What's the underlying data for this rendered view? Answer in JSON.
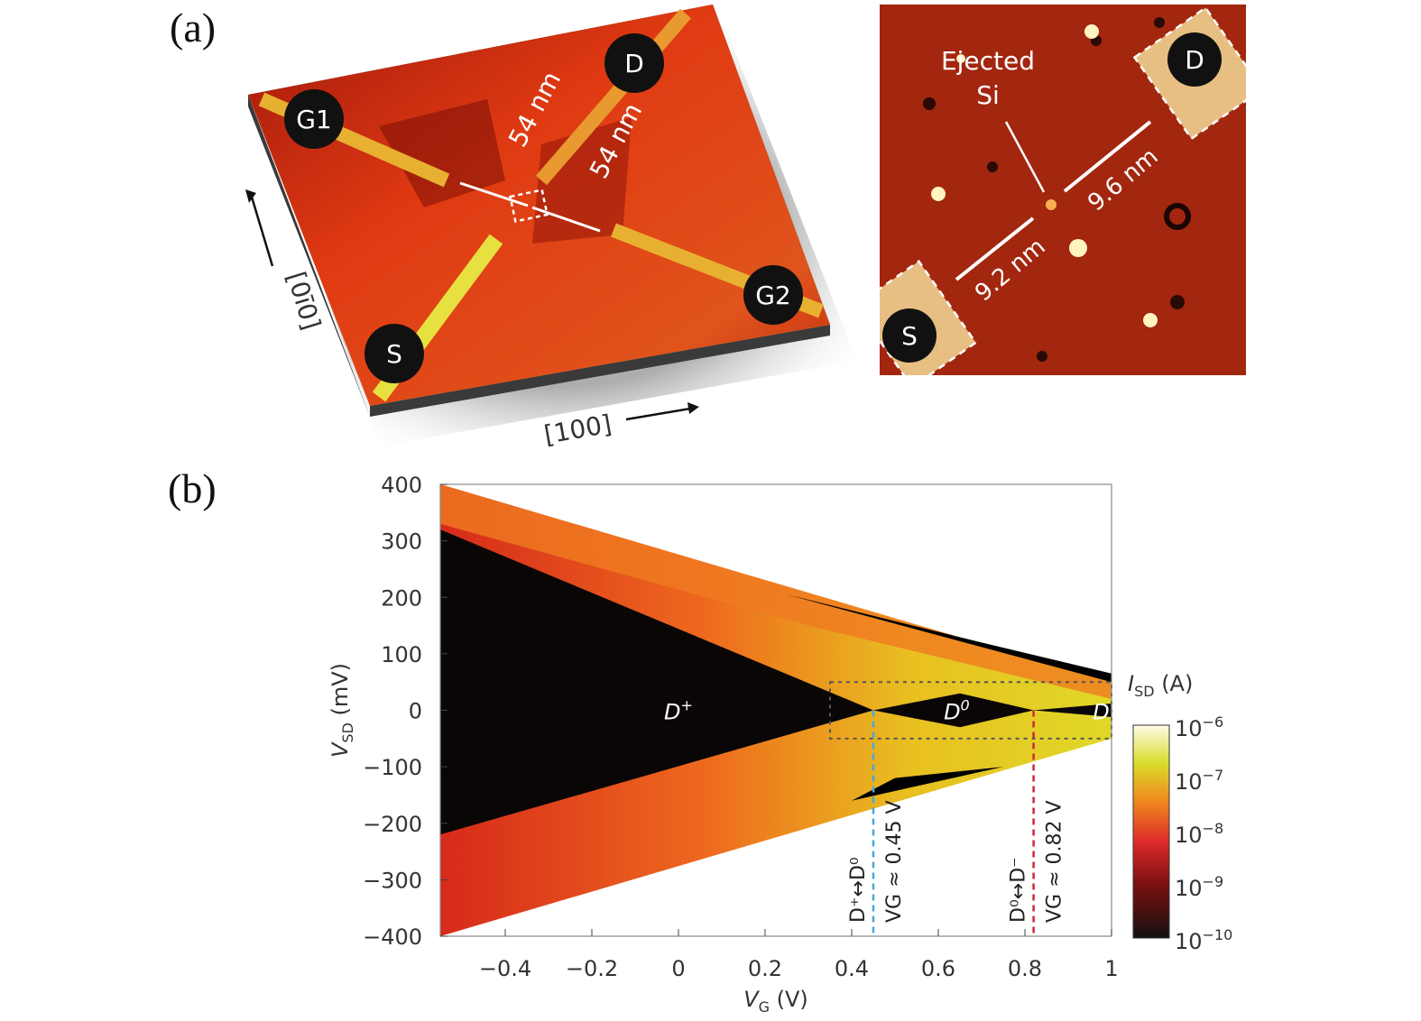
{
  "panel_a": {
    "label": "(a)",
    "left_image": {
      "electrodes": [
        "G1",
        "D",
        "S",
        "G2"
      ],
      "dimension_labels": [
        "54 nm",
        "54 nm"
      ],
      "axis_labels": [
        "[0ī0]",
        "[100]"
      ]
    },
    "right_image": {
      "annotation_line1": "Ejected",
      "annotation_line2": "Si",
      "electrodes": [
        "S",
        "D"
      ],
      "distances": [
        "9.2 nm",
        "9.6 nm"
      ]
    }
  },
  "panel_b": {
    "label": "(b)"
  },
  "chart_data": {
    "type": "heatmap",
    "xlabel": "V_G (V)",
    "xlabel_main": "V",
    "xlabel_sub": "G",
    "xlabel_unit": "(V)",
    "ylabel_main": "V",
    "ylabel_sub": "SD",
    "ylabel_unit": "(mV)",
    "xlim": [
      -0.55,
      1.0
    ],
    "ylim": [
      -400,
      400
    ],
    "xticks": [
      "-0.4",
      "-0.2",
      "0",
      "0.2",
      "0.4",
      "0.6",
      "0.8",
      "1"
    ],
    "xtick_values": [
      -0.4,
      -0.2,
      0,
      0.2,
      0.4,
      0.6,
      0.8,
      1
    ],
    "yticks": [
      "400",
      "300",
      "200",
      "100",
      "0",
      "-100",
      "-200",
      "-300",
      "-400"
    ],
    "ytick_values": [
      400,
      300,
      200,
      100,
      0,
      -100,
      -200,
      -300,
      -400
    ],
    "measured_region": {
      "top_edge": [
        [
          -0.55,
          400
        ],
        [
          1.0,
          50
        ]
      ],
      "bottom_edge": [
        [
          -0.55,
          -400
        ],
        [
          1.0,
          -50
        ]
      ]
    },
    "blockade_regions": [
      {
        "label_main": "D",
        "label_sup": "+",
        "vertices": [
          [
            -0.55,
            320
          ],
          [
            0.45,
            0
          ],
          [
            -0.55,
            -220
          ]
        ]
      },
      {
        "label_main": "D",
        "label_sup": "0",
        "vertices": [
          [
            0.45,
            0
          ],
          [
            0.65,
            30
          ],
          [
            0.82,
            0
          ],
          [
            0.65,
            -30
          ]
        ]
      },
      {
        "label_main": "D",
        "label_sup": "−",
        "vertices": [
          [
            0.82,
            0
          ],
          [
            1.0,
            12
          ],
          [
            1.0,
            -12
          ]
        ]
      }
    ],
    "dashed_box": {
      "x": [
        0.35,
        1.0
      ],
      "y": [
        -50,
        50
      ]
    },
    "transitions": [
      {
        "vg": 0.45,
        "color": "#4aa8d8",
        "label": "D⁺↔D⁰",
        "value_label": "V_G ≈ 0.45 V",
        "vg_text": "≈ 0.45 V"
      },
      {
        "vg": 0.82,
        "color": "#d0283a",
        "label": "D⁰↔D⁻",
        "value_label": "V_G ≈ 0.82 V",
        "vg_text": "≈ 0.82 V"
      }
    ],
    "colorbar": {
      "title_main": "I",
      "title_sub": "SD",
      "title_unit": "(A)",
      "scale": "log",
      "range": [
        1e-10,
        1e-06
      ],
      "tick_exponents": [
        "-6",
        "-7",
        "-8",
        "-9",
        "-10"
      ],
      "colors": [
        "#fffbe8",
        "#d9dc2a",
        "#f08c1e",
        "#dc2a2a",
        "#141010"
      ]
    },
    "grid": false
  }
}
